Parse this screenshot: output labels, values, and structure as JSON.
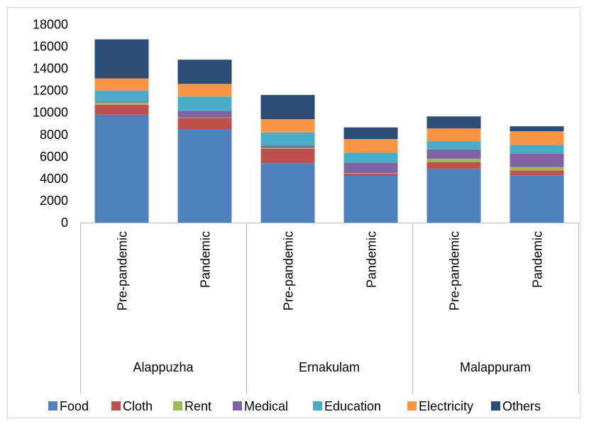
{
  "chart_data": {
    "type": "bar",
    "stacked": true,
    "groups": [
      {
        "name": "Alappuzha",
        "categories": [
          "Pre-pandemic",
          "Pandemic"
        ]
      },
      {
        "name": "Ernakulam",
        "categories": [
          "Pre-pandemic",
          "Pandemic"
        ]
      },
      {
        "name": "Malappuram",
        "categories": [
          "Pre-pandemic",
          "Pandemic"
        ]
      }
    ],
    "categories": [
      "Pre-pandemic",
      "Pandemic",
      "Pre-pandemic",
      "Pandemic",
      "Pre-pandemic",
      "Pandemic"
    ],
    "series": [
      {
        "name": "Food",
        "color": "#4f81bd",
        "values": [
          9800,
          8500,
          5400,
          4250,
          4900,
          4300
        ]
      },
      {
        "name": "Cloth",
        "color": "#c0504d",
        "values": [
          900,
          1000,
          1300,
          200,
          600,
          450
        ]
      },
      {
        "name": "Rent",
        "color": "#9bbb59",
        "values": [
          200,
          50,
          100,
          50,
          300,
          300
        ]
      },
      {
        "name": "Medical",
        "color": "#8064a2",
        "values": [
          100,
          600,
          200,
          950,
          850,
          1200
        ]
      },
      {
        "name": "Education",
        "color": "#4bacc6",
        "values": [
          1000,
          1300,
          1200,
          900,
          750,
          800
        ]
      },
      {
        "name": "Electricity",
        "color": "#f79646",
        "values": [
          1100,
          1150,
          1200,
          1250,
          1150,
          1250
        ]
      },
      {
        "name": "Others",
        "color": "#2c4d75",
        "values": [
          3550,
          2200,
          2200,
          1050,
          1100,
          450
        ]
      }
    ],
    "ylim": [
      0,
      18000
    ],
    "yticks": [
      0,
      2000,
      4000,
      6000,
      8000,
      10000,
      12000,
      14000,
      16000,
      18000
    ],
    "grid": false,
    "legend_position": "bottom"
  }
}
